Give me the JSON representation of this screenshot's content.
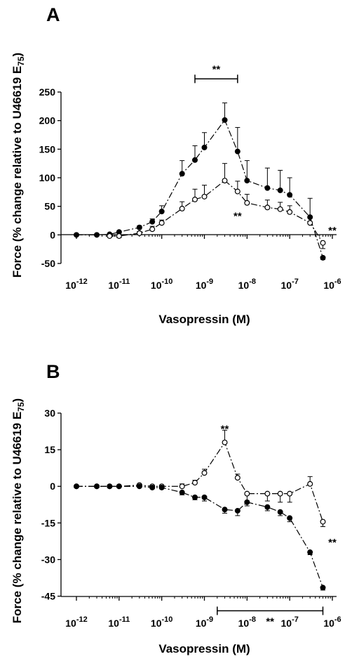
{
  "chart_data": [
    {
      "panel": "A",
      "type": "line",
      "xscale": "log",
      "xlabel": "Vasopressin (M)",
      "ylabel": "Force (% change relative to U46619 E75)",
      "ylim": [
        -50,
        250
      ],
      "yticks": [
        -50,
        0,
        50,
        100,
        150,
        200,
        250
      ],
      "xlim": [
        1e-12,
        1e-06
      ],
      "xtick_labels": [
        "10-12",
        "10-11",
        "10-10",
        "10-9",
        "10-8",
        "10-7",
        "10-6"
      ],
      "grid": false,
      "series": [
        {
          "marker": "filled-circle",
          "line": "dash-dot",
          "color": "#000000",
          "x": [
            1e-12,
            3e-12,
            6e-12,
            1e-11,
            3e-11,
            6e-11,
            1e-10,
            3e-10,
            6e-10,
            1e-09,
            3e-09,
            6e-09,
            1e-08,
            3e-08,
            6e-08,
            1e-07,
            3e-07,
            6e-07
          ],
          "y": [
            0,
            0,
            1,
            5,
            13,
            23,
            41,
            107,
            131,
            153,
            201,
            146,
            95,
            82,
            78,
            70,
            31,
            -40
          ],
          "error": [
            0,
            0,
            0,
            2,
            3,
            5,
            10,
            23,
            25,
            26,
            30,
            42,
            35,
            35,
            35,
            30,
            33,
            3
          ]
        },
        {
          "marker": "open-circle",
          "line": "dash-dot",
          "color": "#000000",
          "x": [
            6e-12,
            1e-11,
            3e-11,
            6e-11,
            1e-10,
            3e-10,
            6e-10,
            1e-09,
            3e-09,
            6e-09,
            1e-08,
            3e-08,
            6e-08,
            1e-07,
            3e-07,
            6e-07
          ],
          "y": [
            -2,
            -2,
            3,
            10,
            21,
            46,
            62,
            67,
            95,
            76,
            56,
            48,
            45,
            40,
            21,
            -14
          ],
          "error": [
            2,
            3,
            3,
            5,
            5,
            12,
            18,
            20,
            30,
            18,
            15,
            13,
            12,
            11,
            10,
            10
          ]
        }
      ],
      "annotations": [
        {
          "text": "**",
          "type": "bracket",
          "x_from": 6e-10,
          "x_to": 6e-09,
          "y": 273
        },
        {
          "text": "**",
          "x": 6e-09,
          "y": 33
        },
        {
          "text": "**",
          "x": 1e-06,
          "y": 8
        }
      ]
    },
    {
      "panel": "B",
      "type": "line",
      "xscale": "log",
      "xlabel": "Vasopressin (M)",
      "ylabel": "Force (% change relative to U46619 E75)",
      "ylim": [
        -48,
        30
      ],
      "yticks": [
        -45,
        -30,
        -15,
        0,
        15,
        30
      ],
      "xlim": [
        1e-12,
        1e-06
      ],
      "xtick_labels": [
        "10-12",
        "10-11",
        "10-10",
        "10-9",
        "10-8",
        "10-7",
        "10-6"
      ],
      "grid": false,
      "series": [
        {
          "marker": "open-circle",
          "line": "dash-dot",
          "color": "#000000",
          "x": [
            1e-12,
            3e-12,
            6e-12,
            1e-11,
            3e-11,
            6e-11,
            1e-10,
            3e-10,
            6e-10,
            1e-09,
            3e-09,
            6e-09,
            1e-08,
            3e-08,
            6e-08,
            1e-07,
            3e-07,
            6e-07
          ],
          "y": [
            0,
            0,
            0,
            0,
            0.5,
            0,
            0,
            0,
            1.5,
            5.5,
            18,
            3.5,
            -3,
            -3,
            -3,
            -3,
            1,
            -14.5
          ],
          "error": [
            0,
            0,
            0,
            0,
            0.5,
            0.5,
            0.5,
            1,
            1,
            1.5,
            5,
            1.5,
            3,
            3,
            3.5,
            3.5,
            3,
            2
          ]
        },
        {
          "marker": "filled-circle",
          "line": "dash-dot",
          "color": "#000000",
          "x": [
            1e-12,
            3e-12,
            6e-12,
            1e-11,
            3e-11,
            6e-11,
            1e-10,
            3e-10,
            6e-10,
            1e-09,
            3e-09,
            6e-09,
            1e-08,
            3e-08,
            6e-08,
            1e-07,
            3e-07,
            6e-07
          ],
          "y": [
            0,
            0,
            0,
            0,
            0,
            -0.5,
            -0.5,
            -2.5,
            -4.5,
            -4.5,
            -9.5,
            -10,
            -6.5,
            -8.5,
            -10.5,
            -13,
            -27,
            -41.5
          ],
          "error": [
            0,
            0,
            0,
            0,
            0,
            0.5,
            0.5,
            1,
            1,
            1.5,
            1.5,
            2,
            1.5,
            1.5,
            1.5,
            1.5,
            1,
            1
          ]
        }
      ],
      "annotations": [
        {
          "text": "**",
          "x": 3e-09,
          "y": 23.5
        },
        {
          "text": "**",
          "x": 1e-06,
          "y": -23
        },
        {
          "text": "**",
          "type": "bracket",
          "x_from": 2e-09,
          "x_to": 6e-07,
          "y": -51
        }
      ]
    }
  ]
}
